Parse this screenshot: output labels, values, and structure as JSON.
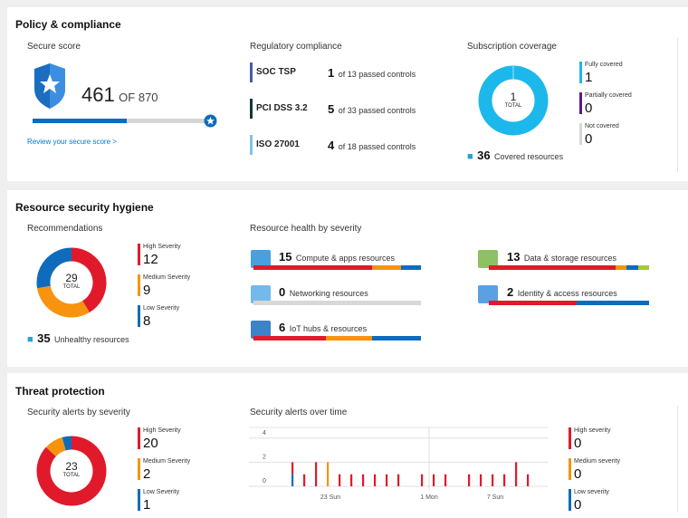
{
  "colors": {
    "high": "#e01a2b",
    "medium": "#f7930f",
    "low": "#0f6cbd",
    "covered": "#1cb8ec",
    "partial": "#5c1b7a",
    "not_covered": "#d8d8d8",
    "link": "#0078d4",
    "green": "#a6c93a"
  },
  "policy": {
    "title": "Policy & compliance",
    "secure_score": {
      "header": "Secure score",
      "score": "461",
      "of": "OF 870",
      "score_value": 461,
      "max_value": 870,
      "link": "Review your secure score >"
    },
    "regulatory": {
      "header": "Regulatory compliance",
      "items": [
        {
          "name": "SOC TSP",
          "passed": "1",
          "text": "of 13 passed controls",
          "color": "#4a5ba8"
        },
        {
          "name": "PCI DSS 3.2",
          "passed": "5",
          "text": "of 33 passed controls",
          "color": "#12363a"
        },
        {
          "name": "ISO 27001",
          "passed": "4",
          "text": "of 18 passed controls",
          "color": "#7fc3e8"
        }
      ]
    },
    "coverage": {
      "header": "Subscription coverage",
      "total": "1",
      "total_label": "TOTAL",
      "legend": [
        {
          "label": "Fully covered",
          "value": "1"
        },
        {
          "label": "Partially covered",
          "value": "0"
        },
        {
          "label": "Not covered",
          "value": "0"
        }
      ],
      "covered_count": "36",
      "covered_label": "Covered resources"
    }
  },
  "hygiene": {
    "title": "Resource security hygiene",
    "recommendations": {
      "header": "Recommendations",
      "total": "29",
      "total_label": "TOTAL",
      "legend": [
        {
          "label": "High Severity",
          "value": "12"
        },
        {
          "label": "Medium Severity",
          "value": "9"
        },
        {
          "label": "Low Severity",
          "value": "8"
        }
      ],
      "unhealthy_count": "35",
      "unhealthy_label": "Unhealthy resources"
    },
    "health": {
      "header": "Resource health by severity",
      "items": [
        {
          "count": "15",
          "label": "Compute & apps resources",
          "icon": "compute-icon",
          "segments": [
            [
              "high",
              0.71
            ],
            [
              "medium",
              0.17
            ],
            [
              "low",
              0.12
            ]
          ]
        },
        {
          "count": "0",
          "label": "Networking resources",
          "icon": "networking-icon",
          "segments": []
        },
        {
          "count": "6",
          "label": "IoT hubs & resources",
          "icon": "iot-icon",
          "segments": [
            [
              "high",
              0.43
            ],
            [
              "medium",
              0.28
            ],
            [
              "low",
              0.29
            ]
          ]
        },
        {
          "count": "13",
          "label": "Data & storage resources",
          "icon": "data-storage-icon",
          "segments": [
            [
              "high",
              0.79
            ],
            [
              "medium",
              0.07
            ],
            [
              "low",
              0.07
            ],
            [
              "green",
              0.07
            ]
          ]
        },
        {
          "count": "2",
          "label": "Identity & access resources",
          "icon": "identity-icon",
          "segments": [
            [
              "high",
              0.55
            ],
            [
              "low",
              0.45
            ]
          ]
        }
      ]
    }
  },
  "threat": {
    "title": "Threat protection",
    "alerts": {
      "header": "Security alerts by severity",
      "total": "23",
      "total_label": "TOTAL",
      "legend": [
        {
          "label": "High Severity",
          "value": "20"
        },
        {
          "label": "Medium Severity",
          "value": "2"
        },
        {
          "label": "Low Severity",
          "value": "1"
        }
      ]
    },
    "over_time_header": "Security alerts over time",
    "legend2": [
      {
        "label": "High severity",
        "value": "0"
      },
      {
        "label": "Medium severity",
        "value": "0"
      },
      {
        "label": "Low severity",
        "value": "0"
      }
    ]
  },
  "chart_data": {
    "type": "bar",
    "stacked": true,
    "ylim": [
      0,
      4
    ],
    "yticks": [
      "0",
      "2",
      "4"
    ],
    "xtick_labels": [
      {
        "day": 23,
        "label": "23 Sun"
      },
      {
        "day": 1,
        "label": "1 Mon"
      },
      {
        "day": 7,
        "label": "7 Sun"
      }
    ],
    "x": [
      20,
      21,
      22,
      23,
      24,
      25,
      26,
      27,
      28,
      29,
      30,
      1,
      2,
      3,
      4,
      5,
      6,
      7,
      8,
      9,
      10
    ],
    "series": [
      {
        "key": "low",
        "values": [
          1,
          0,
          0,
          0,
          0,
          0,
          0,
          0,
          0,
          0,
          0,
          0,
          0,
          0,
          0,
          0,
          0,
          0,
          0,
          0,
          0
        ]
      },
      {
        "key": "medium",
        "values": [
          0,
          0,
          0,
          2,
          0,
          0,
          0,
          0,
          0,
          0,
          0,
          0,
          0,
          0,
          0,
          0,
          0,
          0,
          0,
          0,
          0
        ]
      },
      {
        "key": "high",
        "values": [
          1,
          1,
          2,
          0,
          1,
          1,
          1,
          1,
          1,
          1,
          0,
          1,
          1,
          1,
          0,
          1,
          1,
          1,
          1,
          2,
          1
        ]
      }
    ]
  }
}
